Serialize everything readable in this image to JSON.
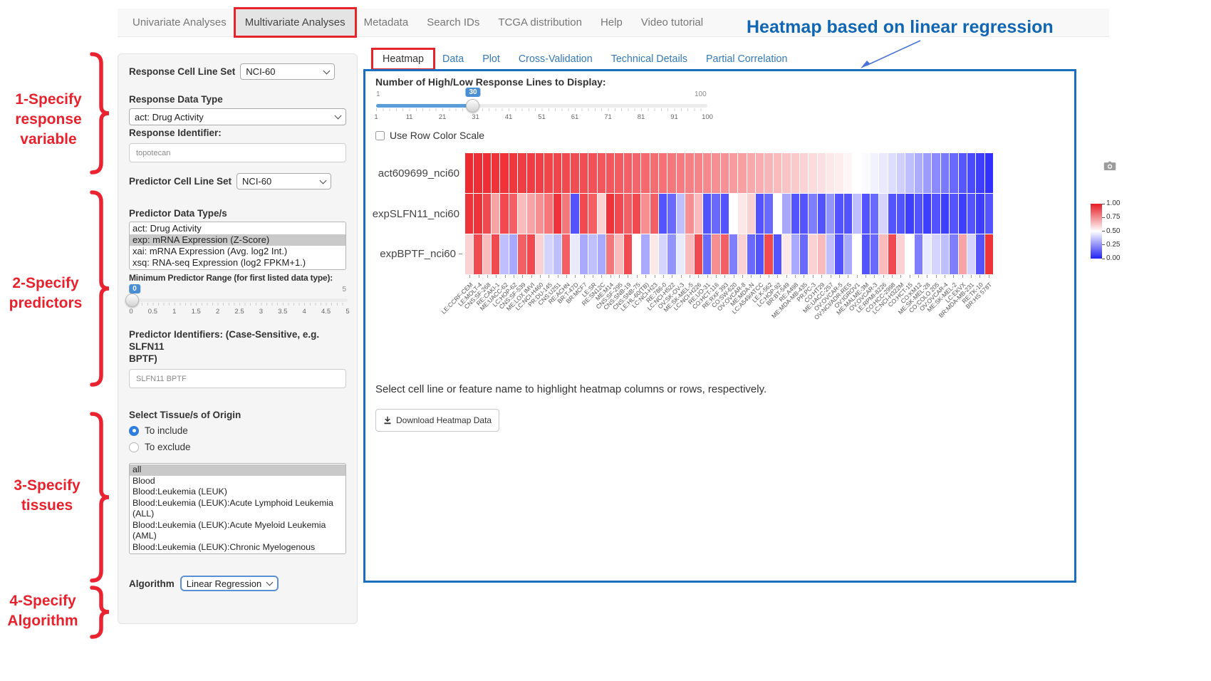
{
  "nav": {
    "items": [
      {
        "label": "Univariate Analyses",
        "active": false,
        "boxed": false
      },
      {
        "label": "Multivariate Analyses",
        "active": true,
        "boxed": true
      },
      {
        "label": "Metadata",
        "active": false,
        "boxed": false
      },
      {
        "label": "Search IDs",
        "active": false,
        "boxed": false
      },
      {
        "label": "TCGA distribution",
        "active": false,
        "boxed": false
      },
      {
        "label": "Help",
        "active": false,
        "boxed": false
      },
      {
        "label": "Video tutorial",
        "active": false,
        "boxed": false
      }
    ]
  },
  "annotations": {
    "title": "Heatmap based on linear regression",
    "title_color": "#1166b3",
    "red_color": "#e8222d",
    "steps": [
      {
        "label": "1-Specify\nresponse\nvariable"
      },
      {
        "label": "2-Specify\npredictors"
      },
      {
        "label": "3-Specify\ntissues"
      },
      {
        "label": "4-Specify\nAlgorithm"
      }
    ]
  },
  "sidebar": {
    "response_cell_line_set": {
      "label": "Response Cell Line Set",
      "value": "NCI-60"
    },
    "response_data_type": {
      "label": "Response Data Type",
      "value": "act: Drug Activity"
    },
    "response_identifier": {
      "label": "Response Identifier:",
      "value": "topotecan"
    },
    "predictor_cell_line_set": {
      "label": "Predictor Cell Line Set",
      "value": "NCI-60"
    },
    "predictor_data_types": {
      "label": "Predictor Data Type/s",
      "options": [
        "act: Drug Activity",
        "exp: mRNA Expression (Z-Score)",
        "xai: mRNA Expression (Avg. log2 Int.)",
        "xsq: RNA-seq Expression (log2 FPKM+1.)"
      ],
      "selected_index": 1
    },
    "min_predictor_range": {
      "label": "Minimum Predictor Range (for first listed data type):",
      "value": "0",
      "max_label": "5",
      "ticks": [
        "0",
        "0.5",
        "1",
        "1.5",
        "2",
        "2.5",
        "3",
        "3.5",
        "4",
        "4.5",
        "5"
      ]
    },
    "predictor_identifiers": {
      "label": "Predictor Identifiers: (Case-Sensitive, e.g. SLFN11\nBPTF)",
      "value": "SLFN11 BPTF"
    },
    "tissue": {
      "label": "Select Tissue/s of Origin",
      "radios": [
        {
          "label": "To include",
          "checked": true
        },
        {
          "label": "To exclude",
          "checked": false
        }
      ],
      "options": [
        "all",
        "Blood",
        "Blood:Leukemia (LEUK)",
        "Blood:Leukemia (LEUK):Acute Lymphoid Leukemia (ALL)",
        "Blood:Leukemia (LEUK):Acute Myeloid Leukemia (AML)",
        "Blood:Leukemia (LEUK):Chronic Myelogenous Leukemia (CML)"
      ],
      "selected_index": 0
    },
    "algorithm": {
      "label": "Algorithm",
      "value": "Linear Regression"
    }
  },
  "tabs": [
    {
      "label": "Heatmap",
      "active": true,
      "boxed": true
    },
    {
      "label": "Data",
      "active": false,
      "boxed": false
    },
    {
      "label": "Plot",
      "active": false,
      "boxed": false
    },
    {
      "label": "Cross-Validation",
      "active": false,
      "boxed": false
    },
    {
      "label": "Technical Details",
      "active": false,
      "boxed": false
    },
    {
      "label": "Partial Correlation",
      "active": false,
      "boxed": false
    }
  ],
  "panel": {
    "slider": {
      "label": "Number of High/Low Response Lines to Display:",
      "min_label": "1",
      "max_label": "100",
      "value": "30",
      "ticks": [
        "1",
        "11",
        "21",
        "31",
        "41",
        "51",
        "61",
        "71",
        "81",
        "91",
        "100"
      ]
    },
    "row_color_checkbox": "Use Row Color Scale",
    "help_text": "Select cell line or feature name to highlight heatmap columns or rows, respectively.",
    "download_button": "Download Heatmap Data"
  },
  "chart_data": {
    "type": "heatmap",
    "rows": [
      "act609699_nci60",
      "expSLFN11_nci60",
      "expBPTF_nci60"
    ],
    "columns": [
      "LE:CCRF-CEM",
      "LE:MOLT-4",
      "CNS:SF-268",
      "RE:CAKI-1",
      "ME:UACC-62",
      "LC:HOP-62",
      "CNS:SF-539",
      "ME:LOX IMVI",
      "LC:NCI-H460",
      "PR:DU-145",
      "CNS:U251",
      "RE:ACHN",
      "BR:T-47D",
      "BR:MCF7",
      "LE:SR",
      "RE:SN12C",
      "ME:M14",
      "CNS:SF-295",
      "CNS:SNB-19",
      "CNS:SNB-75",
      "LE:HL-60(TB)",
      "LC:NCI-H23",
      "RE:786-0",
      "LC:NCI-H522",
      "OV:SK-OV-3",
      "ME:SK-MEL-5",
      "LC:NCI-H226",
      "RE:UO-31",
      "CO:HCT-116",
      "RE:RXF 393",
      "CO:SW-620",
      "OV:OVCAR-8",
      "ME:MDA-N",
      "LC:A549/ATCC",
      "LE:K-562",
      "LC:HOP-92",
      "BR:BT-549",
      "RE:A498",
      "ME:MDA-MB-435",
      "PR:PC-3",
      "CO:HT29",
      "ME:UACC-257",
      "OV:OVCAR-5",
      "OV:NCI/ADR-RES",
      "OV:IGROV1",
      "ME:MALME-3M",
      "OV:OVCAR-3",
      "LE:RPMI-8226",
      "CO:HCC-2998",
      "LC:NCI-H322M",
      "CO:HCT-15",
      "CO:KM12",
      "ME:SK-MEL-28",
      "CO:COLO 205",
      "OV:OVCAR-4",
      "ME:SK-MEL-2",
      "LC:EKVX",
      "BR:MDA-MB-231",
      "RE:TK-10",
      "BR:HS 578T"
    ],
    "values": [
      [
        0.97,
        0.96,
        0.96,
        0.95,
        0.95,
        0.94,
        0.93,
        0.93,
        0.92,
        0.91,
        0.91,
        0.9,
        0.89,
        0.89,
        0.88,
        0.87,
        0.87,
        0.86,
        0.85,
        0.84,
        0.83,
        0.82,
        0.81,
        0.8,
        0.79,
        0.78,
        0.77,
        0.76,
        0.75,
        0.74,
        0.72,
        0.71,
        0.69,
        0.68,
        0.66,
        0.65,
        0.63,
        0.62,
        0.6,
        0.58,
        0.57,
        0.55,
        0.54,
        0.52,
        0.5,
        0.49,
        0.47,
        0.45,
        0.42,
        0.39,
        0.35,
        0.31,
        0.27,
        0.23,
        0.19,
        0.15,
        0.11,
        0.08,
        0.05,
        0.02
      ],
      [
        0.95,
        0.95,
        0.9,
        0.7,
        0.9,
        0.85,
        0.65,
        0.7,
        0.75,
        0.8,
        0.95,
        0.8,
        0.1,
        0.9,
        0.85,
        0.6,
        0.95,
        0.9,
        0.85,
        0.9,
        0.75,
        0.85,
        0.1,
        0.15,
        0.35,
        0.75,
        0.65,
        0.1,
        0.15,
        0.1,
        0.5,
        0.55,
        0.6,
        0.1,
        0.15,
        0.5,
        0.3,
        0.1,
        0.1,
        0.2,
        0.1,
        0.25,
        0.1,
        0.1,
        0.35,
        0.1,
        0.15,
        0.4,
        0.1,
        0.1,
        0.05,
        0.1,
        0.05,
        0.1,
        0.05,
        0.1,
        0.05,
        0.1,
        0.05,
        0.1
      ],
      [
        0.6,
        0.9,
        0.65,
        0.9,
        0.35,
        0.3,
        0.85,
        0.9,
        0.6,
        0.4,
        0.35,
        0.85,
        0.45,
        0.3,
        0.35,
        0.3,
        0.8,
        0.65,
        0.9,
        0.5,
        0.3,
        0.55,
        0.4,
        0.25,
        0.45,
        0.65,
        0.9,
        0.15,
        0.75,
        0.85,
        0.2,
        0.6,
        0.15,
        0.1,
        0.9,
        0.1,
        0.55,
        0.3,
        0.15,
        0.6,
        0.65,
        0.35,
        0.1,
        0.3,
        0.5,
        0.1,
        0.15,
        0.65,
        0.9,
        0.6,
        0.5,
        0.2,
        0.45,
        0.4,
        0.35,
        0.2,
        0.7,
        0.4,
        0.1,
        0.95
      ]
    ],
    "colorscale": {
      "low": "#2828ff",
      "mid": "#ffffff",
      "high": "#ed1c24",
      "domain": [
        0,
        1
      ]
    },
    "legend_ticks": [
      "1.00",
      "0.75",
      "0.50",
      "0.25",
      "0.00"
    ],
    "layout": {
      "legend_position": "right",
      "x_tick_angle": -45,
      "grid": false
    }
  }
}
